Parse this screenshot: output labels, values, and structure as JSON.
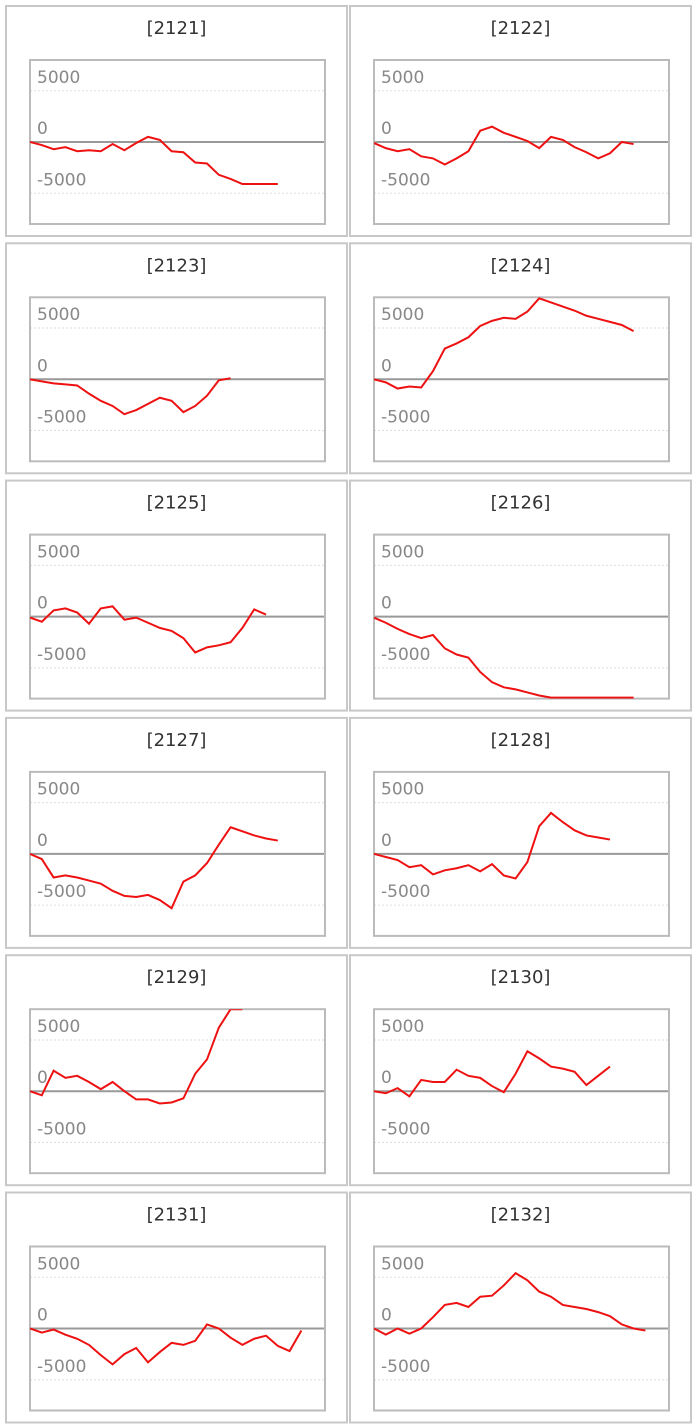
{
  "chart_data": [
    {
      "type": "line",
      "title": "[2121]",
      "color": "#ee1111",
      "ylim": [
        -8000,
        8000
      ],
      "yticks": [
        5000,
        0,
        -5000
      ],
      "values": [
        0,
        -300,
        -700,
        -500,
        -900,
        -800,
        -900,
        -200,
        -800,
        -100,
        500,
        200,
        -900,
        -1000,
        -2000,
        -2100,
        -3200,
        -3600,
        -4100,
        -4100,
        -4100,
        -4100
      ]
    },
    {
      "type": "line",
      "title": "[2122]",
      "color": "#ee1111",
      "ylim": [
        -8000,
        8000
      ],
      "yticks": [
        5000,
        0,
        -5000
      ],
      "values": [
        -100,
        -600,
        -900,
        -700,
        -1400,
        -1600,
        -2200,
        -1600,
        -900,
        1100,
        1500,
        900,
        500,
        100,
        -600,
        500,
        200,
        -500,
        -1000,
        -1600,
        -1100,
        0,
        -200
      ]
    },
    {
      "type": "line",
      "title": "[2123]",
      "color": "#ee1111",
      "ylim": [
        -8000,
        8000
      ],
      "yticks": [
        5000,
        0,
        -5000
      ],
      "values": [
        0,
        -200,
        -400,
        -500,
        -600,
        -1400,
        -2100,
        -2600,
        -3400,
        -3000,
        -2400,
        -1800,
        -2100,
        -3200,
        -2600,
        -1600,
        -100,
        100
      ]
    },
    {
      "type": "line",
      "title": "[2124]",
      "color": "#ee1111",
      "ylim": [
        -8000,
        8000
      ],
      "yticks": [
        5000,
        0,
        -5000
      ],
      "values": [
        0,
        -300,
        -900,
        -700,
        -800,
        800,
        3000,
        3500,
        4100,
        5200,
        5700,
        6000,
        5900,
        6600,
        7900,
        7500,
        7100,
        6700,
        6200,
        5900,
        5600,
        5300,
        4700
      ]
    },
    {
      "type": "line",
      "title": "[2125]",
      "color": "#ee1111",
      "ylim": [
        -8000,
        8000
      ],
      "yticks": [
        5000,
        0,
        -5000
      ],
      "values": [
        -100,
        -500,
        600,
        800,
        400,
        -700,
        800,
        1000,
        -300,
        -100,
        -600,
        -1100,
        -1400,
        -2100,
        -3500,
        -3000,
        -2800,
        -2500,
        -1100,
        700,
        200
      ]
    },
    {
      "type": "line",
      "title": "[2126]",
      "color": "#ee1111",
      "ylim": [
        -8000,
        8000
      ],
      "yticks": [
        5000,
        0,
        -5000
      ],
      "values": [
        -100,
        -600,
        -1200,
        -1700,
        -2100,
        -1800,
        -3100,
        -3700,
        -4000,
        -5400,
        -6400,
        -6900,
        -7100,
        -7400,
        -7700,
        -7900,
        -7900,
        -7900,
        -7900,
        -7900,
        -7900,
        -7900,
        -7900
      ]
    },
    {
      "type": "line",
      "title": "[2127]",
      "color": "#ee1111",
      "ylim": [
        -8000,
        8000
      ],
      "yticks": [
        5000,
        0,
        -5000
      ],
      "values": [
        0,
        -500,
        -2300,
        -2100,
        -2300,
        -2600,
        -2900,
        -3600,
        -4100,
        -4200,
        -4000,
        -4500,
        -5300,
        -2700,
        -2100,
        -900,
        900,
        2600,
        2200,
        1800,
        1500,
        1300
      ]
    },
    {
      "type": "line",
      "title": "[2128]",
      "color": "#ee1111",
      "ylim": [
        -8000,
        8000
      ],
      "yticks": [
        5000,
        0,
        -5000
      ],
      "values": [
        0,
        -300,
        -600,
        -1300,
        -1100,
        -2000,
        -1600,
        -1400,
        -1100,
        -1700,
        -1000,
        -2100,
        -2400,
        -800,
        2700,
        4000,
        3100,
        2300,
        1800,
        1600,
        1400
      ]
    },
    {
      "type": "line",
      "title": "[2129]",
      "color": "#ee1111",
      "ylim": [
        -8000,
        8000
      ],
      "yticks": [
        5000,
        0,
        -5000
      ],
      "values": [
        0,
        -400,
        2000,
        1300,
        1500,
        900,
        200,
        900,
        0,
        -800,
        -800,
        -1200,
        -1100,
        -700,
        1700,
        3100,
        6200,
        8000,
        8000
      ]
    },
    {
      "type": "line",
      "title": "[2130]",
      "color": "#ee1111",
      "ylim": [
        -8000,
        8000
      ],
      "yticks": [
        5000,
        0,
        -5000
      ],
      "values": [
        0,
        -200,
        300,
        -500,
        1100,
        900,
        900,
        2100,
        1500,
        1300,
        500,
        -100,
        1700,
        3900,
        3200,
        2400,
        2200,
        1900,
        600,
        1500,
        2400
      ]
    },
    {
      "type": "line",
      "title": "[2131]",
      "color": "#ee1111",
      "ylim": [
        -8000,
        8000
      ],
      "yticks": [
        5000,
        0,
        -5000
      ],
      "values": [
        0,
        -400,
        -100,
        -600,
        -1000,
        -1600,
        -2600,
        -3500,
        -2500,
        -1900,
        -3300,
        -2300,
        -1400,
        -1600,
        -1200,
        400,
        0,
        -900,
        -1600,
        -1000,
        -700,
        -1700,
        -2200,
        -200
      ]
    },
    {
      "type": "line",
      "title": "[2132]",
      "color": "#ee1111",
      "ylim": [
        -8000,
        8000
      ],
      "yticks": [
        5000,
        0,
        -5000
      ],
      "values": [
        0,
        -600,
        0,
        -500,
        0,
        1100,
        2300,
        2500,
        2100,
        3100,
        3200,
        4200,
        5400,
        4700,
        3600,
        3100,
        2300,
        2100,
        1900,
        1600,
        1200,
        400,
        0,
        -200
      ]
    }
  ]
}
